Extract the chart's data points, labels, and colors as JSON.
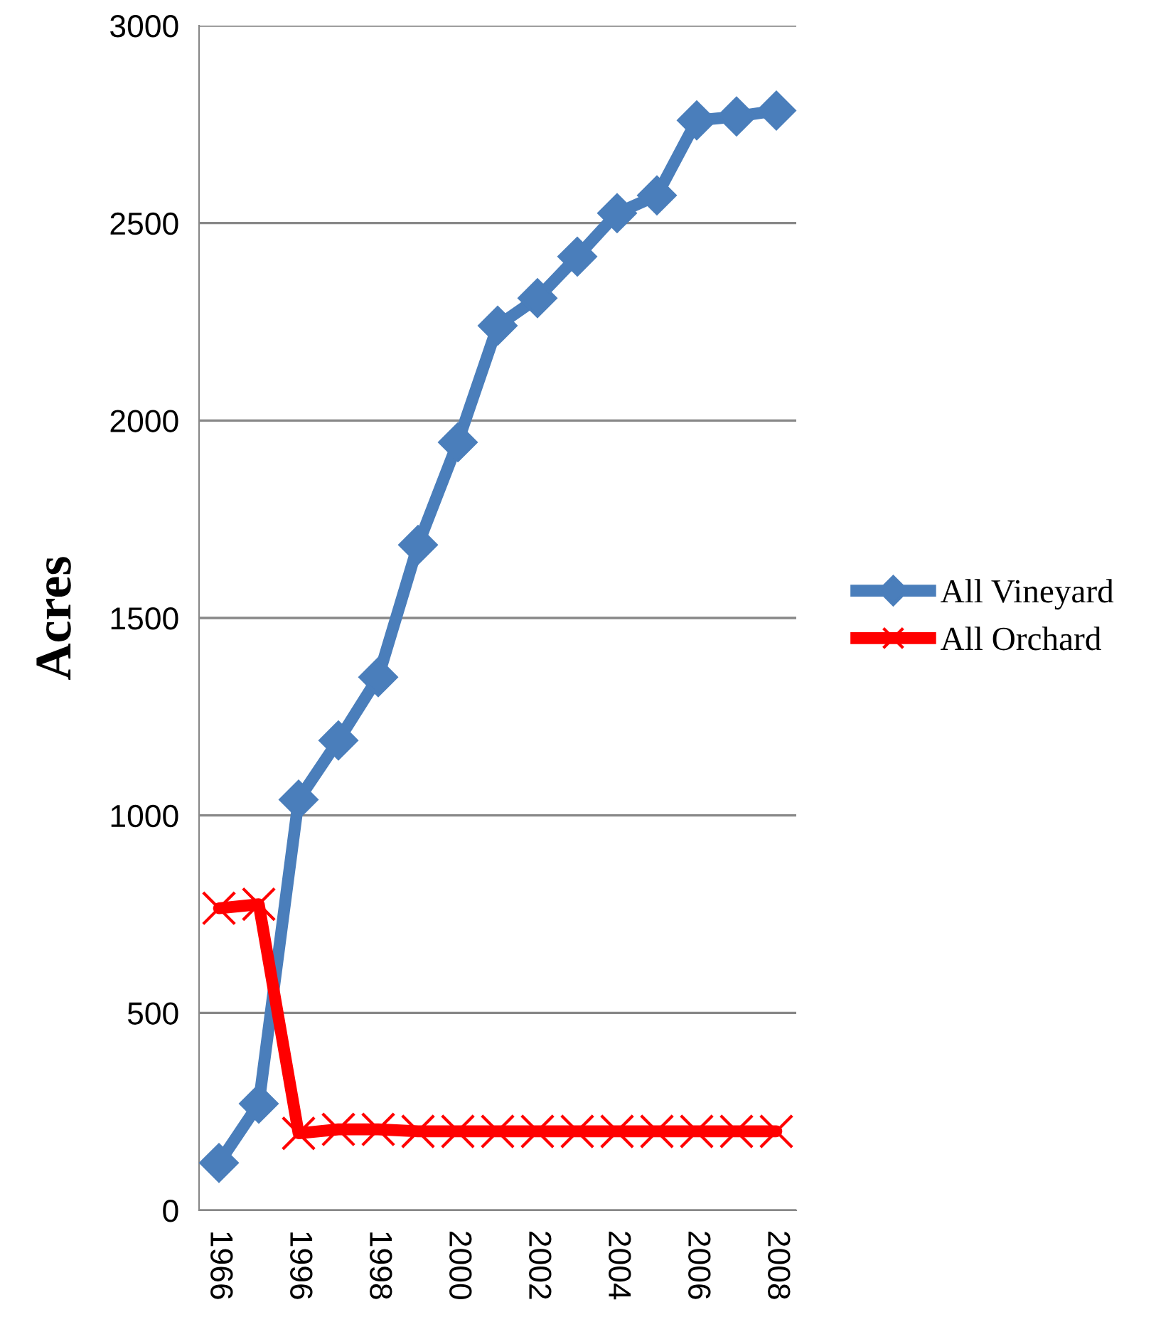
{
  "chart_data": {
    "type": "line",
    "ylabel": "Acres",
    "categories": [
      "1966",
      null,
      "1996",
      null,
      "1998",
      null,
      "2000",
      null,
      "2002",
      null,
      "2004",
      null,
      "2006",
      null,
      "2008"
    ],
    "series": [
      {
        "name": "All Vineyard",
        "color": "#4a7ebb",
        "marker": "diamond",
        "values": [
          120,
          270,
          1040,
          1190,
          1350,
          1685,
          1945,
          2240,
          2310,
          2415,
          2525,
          2570,
          2760,
          2770,
          2785
        ]
      },
      {
        "name": "All Orchard",
        "color": "#ff0000",
        "marker": "cross",
        "values": [
          765,
          775,
          195,
          205,
          205,
          200,
          200,
          200,
          200,
          200,
          200,
          200,
          200,
          200,
          200
        ]
      }
    ],
    "ylim": [
      0,
      3000
    ],
    "yticks": [
      0,
      500,
      1000,
      1500,
      2000,
      2500,
      3000
    ],
    "grid": "y",
    "legend": "right"
  }
}
